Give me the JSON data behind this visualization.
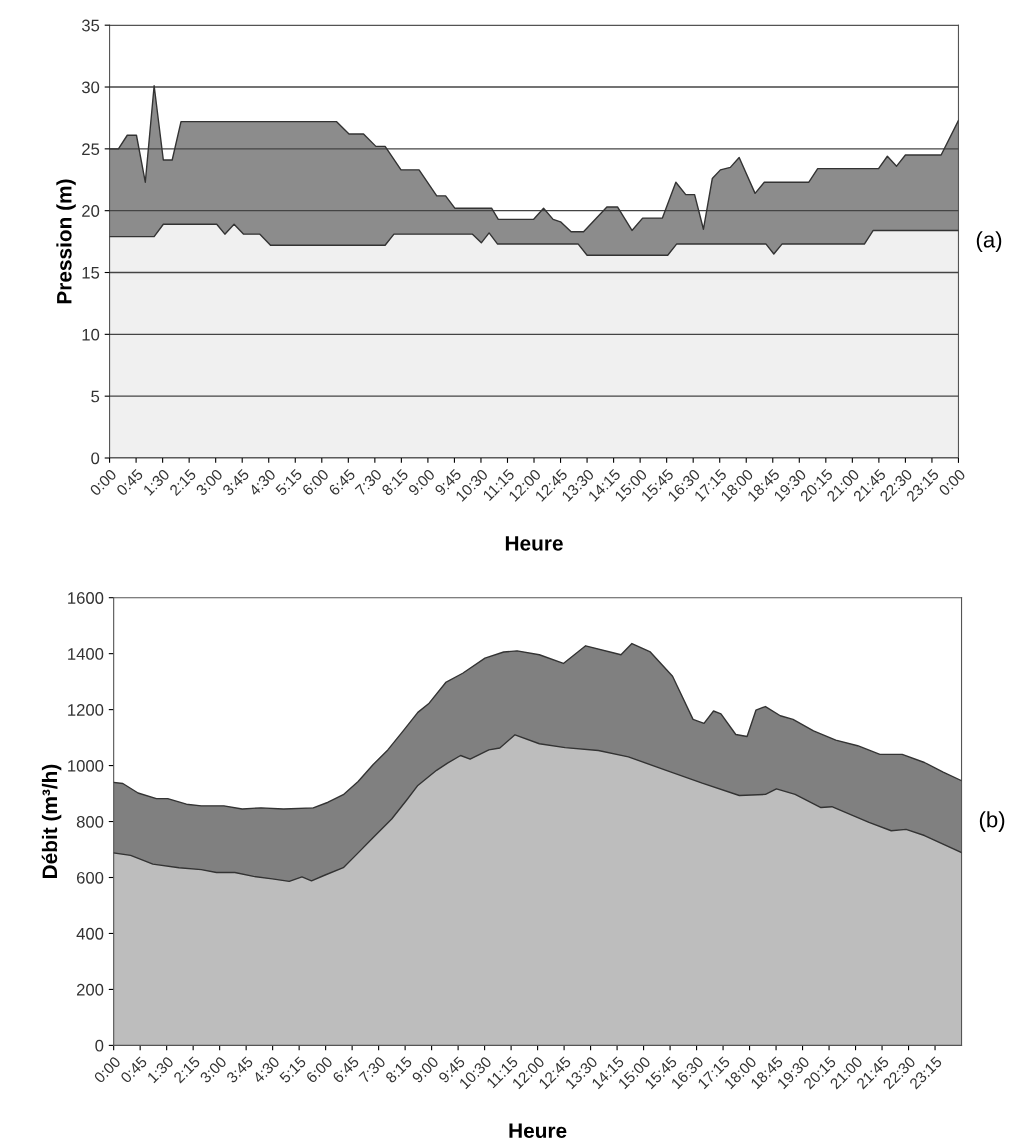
{
  "chart_data": [
    {
      "type": "area",
      "xlabel": "Heure",
      "ylabel": "Pression (m)",
      "annotations": [
        "(a)"
      ],
      "grid": "y",
      "xlim": [
        0,
        24
      ],
      "ylim": [
        0,
        35
      ],
      "yticks": [
        0,
        5,
        10,
        15,
        20,
        25,
        30,
        35
      ],
      "xticks": [
        {
          "value": 0,
          "label": "0:00"
        },
        {
          "value": 0.75,
          "label": "0:45"
        },
        {
          "value": 1.5,
          "label": "1:30"
        },
        {
          "value": 2.25,
          "label": "2:15"
        },
        {
          "value": 3,
          "label": "3:00"
        },
        {
          "value": 3.75,
          "label": "3:45"
        },
        {
          "value": 4.5,
          "label": "4:30"
        },
        {
          "value": 5.25,
          "label": "5:15"
        },
        {
          "value": 6,
          "label": "6:00"
        },
        {
          "value": 6.75,
          "label": "6:45"
        },
        {
          "value": 7.5,
          "label": "7:30"
        },
        {
          "value": 8.25,
          "label": "8:15"
        },
        {
          "value": 9,
          "label": "9:00"
        },
        {
          "value": 9.75,
          "label": "9:45"
        },
        {
          "value": 10.5,
          "label": "10:30"
        },
        {
          "value": 11.25,
          "label": "11:15"
        },
        {
          "value": 12,
          "label": "12:00"
        },
        {
          "value": 12.75,
          "label": "12:45"
        },
        {
          "value": 13.5,
          "label": "13:30"
        },
        {
          "value": 14.25,
          "label": "14:15"
        },
        {
          "value": 15,
          "label": "15:00"
        },
        {
          "value": 15.75,
          "label": "15:45"
        },
        {
          "value": 16.5,
          "label": "16:30"
        },
        {
          "value": 17.25,
          "label": "17:15"
        },
        {
          "value": 18,
          "label": "18:00"
        },
        {
          "value": 18.75,
          "label": "18:45"
        },
        {
          "value": 19.5,
          "label": "19:30"
        },
        {
          "value": 20.25,
          "label": "20:15"
        },
        {
          "value": 21,
          "label": "21:00"
        },
        {
          "value": 21.75,
          "label": "21:45"
        },
        {
          "value": 22.5,
          "label": "22:30"
        },
        {
          "value": 23.25,
          "label": "23:15"
        },
        {
          "value": 24,
          "label": "0:00"
        }
      ],
      "series": [
        {
          "color": "#8c8c8c",
          "x": [
            0,
            0.25,
            0.5,
            0.76,
            1.01,
            1.26,
            1.52,
            1.77,
            2.02,
            6.42,
            6.77,
            7.18,
            7.53,
            7.79,
            8.24,
            8.75,
            9.25,
            9.5,
            9.76,
            10.8,
            10.99,
            11.99,
            12.27,
            12.54,
            12.75,
            13.05,
            13.4,
            14.06,
            14.36,
            14.77,
            15.07,
            15.63,
            16.01,
            16.29,
            16.54,
            16.79,
            17.04,
            17.27,
            17.55,
            17.8,
            18.25,
            18.51,
            19.77,
            20.02,
            21.74,
            21.99,
            22.25,
            22.5,
            23.51,
            24
          ],
          "values": [
            25.0,
            25.0,
            26.1,
            26.1,
            22.3,
            30.1,
            24.1,
            24.1,
            27.2,
            27.2,
            26.2,
            26.2,
            25.2,
            25.2,
            23.3,
            23.3,
            21.2,
            21.2,
            20.2,
            20.2,
            19.3,
            19.3,
            20.2,
            19.3,
            19.1,
            18.3,
            18.3,
            20.3,
            20.3,
            18.4,
            19.4,
            19.4,
            22.3,
            21.3,
            21.3,
            18.5,
            22.6,
            23.3,
            23.5,
            24.3,
            21.4,
            22.3,
            22.3,
            23.4,
            23.4,
            24.4,
            23.6,
            24.5,
            24.5,
            27.3
          ]
        },
        {
          "color": "#f0f0f0",
          "x": [
            0,
            1.26,
            1.52,
            3.03,
            3.26,
            3.52,
            3.79,
            4.25,
            4.55,
            7.79,
            8.04,
            10.26,
            10.51,
            10.73,
            10.97,
            13.25,
            13.5,
            15.78,
            16.03,
            18.56,
            18.78,
            19.01,
            21.34,
            21.59,
            24
          ],
          "values": [
            17.9,
            17.9,
            18.9,
            18.9,
            18.1,
            18.9,
            18.1,
            18.1,
            17.2,
            17.2,
            18.1,
            18.1,
            17.4,
            18.2,
            17.3,
            17.3,
            16.4,
            16.4,
            17.3,
            17.3,
            16.5,
            17.3,
            17.3,
            18.4,
            18.4
          ]
        }
      ]
    },
    {
      "type": "area",
      "xlabel": "Heure",
      "ylabel": "Débit (m³/h)",
      "annotations": [
        "(b)"
      ],
      "xlim": [
        0,
        24
      ],
      "ylim": [
        0,
        1600
      ],
      "yticks": [
        0,
        200,
        400,
        600,
        800,
        1000,
        1200,
        1400,
        1600
      ],
      "xticks": [
        {
          "value": 0,
          "label": "0:00"
        },
        {
          "value": 0.75,
          "label": "0:45"
        },
        {
          "value": 1.5,
          "label": "1:30"
        },
        {
          "value": 2.25,
          "label": "2:15"
        },
        {
          "value": 3,
          "label": "3:00"
        },
        {
          "value": 3.75,
          "label": "3:45"
        },
        {
          "value": 4.5,
          "label": "4:30"
        },
        {
          "value": 5.25,
          "label": "5:15"
        },
        {
          "value": 6,
          "label": "6:00"
        },
        {
          "value": 6.75,
          "label": "6:45"
        },
        {
          "value": 7.5,
          "label": "7:30"
        },
        {
          "value": 8.25,
          "label": "8:15"
        },
        {
          "value": 9,
          "label": "9:00"
        },
        {
          "value": 9.75,
          "label": "9:45"
        },
        {
          "value": 10.5,
          "label": "10:30"
        },
        {
          "value": 11.25,
          "label": "11:15"
        },
        {
          "value": 12,
          "label": "12:00"
        },
        {
          "value": 12.75,
          "label": "12:45"
        },
        {
          "value": 13.5,
          "label": "13:30"
        },
        {
          "value": 14.25,
          "label": "14:15"
        },
        {
          "value": 15,
          "label": "15:00"
        },
        {
          "value": 15.75,
          "label": "15:45"
        },
        {
          "value": 16.5,
          "label": "16:30"
        },
        {
          "value": 17.25,
          "label": "17:15"
        },
        {
          "value": 18,
          "label": "18:00"
        },
        {
          "value": 18.75,
          "label": "18:45"
        },
        {
          "value": 19.5,
          "label": "19:30"
        },
        {
          "value": 20.25,
          "label": "20:15"
        },
        {
          "value": 21,
          "label": "21:00"
        },
        {
          "value": 21.75,
          "label": "21:45"
        },
        {
          "value": 22.5,
          "label": "22:30"
        },
        {
          "value": 23.25,
          "label": "23:15"
        }
      ],
      "series": [
        {
          "color": "#808080",
          "x": [
            0,
            0.26,
            0.69,
            1.21,
            1.53,
            2.06,
            2.48,
            3.12,
            3.64,
            4.17,
            4.81,
            5.65,
            6.07,
            6.5,
            6.92,
            7.34,
            7.76,
            8.19,
            8.61,
            8.93,
            9.4,
            9.88,
            10.51,
            11.04,
            11.42,
            12.05,
            12.73,
            13.36,
            14.36,
            14.67,
            15.19,
            15.82,
            16.4,
            16.71,
            16.98,
            17.19,
            17.61,
            17.93,
            18.18,
            18.45,
            18.87,
            19.23,
            19.81,
            20.44,
            21.06,
            21.69,
            22.32,
            22.95,
            23.48,
            24
          ],
          "values": [
            940,
            936,
            902,
            882,
            882,
            862,
            856,
            856,
            845,
            849,
            845,
            849,
            869,
            896,
            943,
            1003,
            1056,
            1123,
            1190,
            1223,
            1297,
            1330,
            1384,
            1406,
            1410,
            1396,
            1365,
            1428,
            1396,
            1436,
            1406,
            1319,
            1165,
            1151,
            1195,
            1185,
            1111,
            1104,
            1198,
            1211,
            1178,
            1165,
            1124,
            1091,
            1071,
            1040,
            1040,
            1011,
            977,
            946
          ]
        },
        {
          "color": "#bdbdbd",
          "x": [
            0,
            0.48,
            1.11,
            1.85,
            2.48,
            2.91,
            3.43,
            3.96,
            4.49,
            4.97,
            5.33,
            5.6,
            5.97,
            6.5,
            6.92,
            7.34,
            7.87,
            8.29,
            8.61,
            9.14,
            9.45,
            9.82,
            10.09,
            10.62,
            10.93,
            11.36,
            12.05,
            12.78,
            13.72,
            14.57,
            15.62,
            16.66,
            17.71,
            18.45,
            18.76,
            19.29,
            20.02,
            20.33,
            21.38,
            22.01,
            22.43,
            22.95,
            24
          ],
          "values": [
            688,
            679,
            648,
            635,
            628,
            618,
            618,
            604,
            595,
            586,
            602,
            588,
            608,
            635,
            688,
            742,
            809,
            876,
            929,
            983,
            1009,
            1036,
            1023,
            1056,
            1063,
            1110,
            1078,
            1064,
            1054,
            1031,
            984,
            937,
            893,
            897,
            917,
            897,
            850,
            853,
            797,
            767,
            772,
            750,
            689
          ]
        }
      ]
    }
  ]
}
